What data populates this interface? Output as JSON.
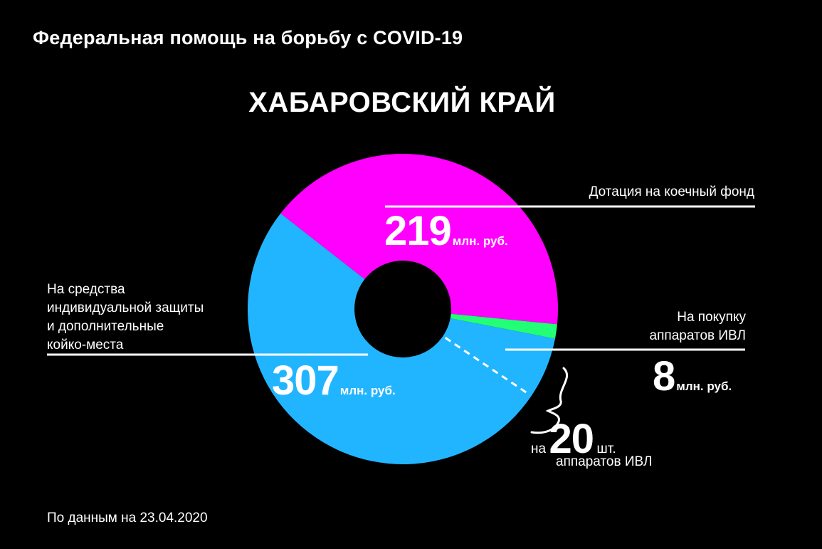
{
  "header": {
    "supertitle": "Федеральная помощь на борьбу с COVID-19",
    "title": "ХАБАРОВСКИЙ КРАЙ"
  },
  "chart_data": {
    "type": "pie",
    "donut": true,
    "slices": [
      {
        "label_lines": [
          "Дотация на коечный фонд"
        ],
        "value": 219,
        "value_text": "219",
        "unit": "млн. руб.",
        "color": "#ff00ff"
      },
      {
        "label_lines": [
          "На покупку",
          "аппаратов ИВЛ"
        ],
        "value": 8,
        "value_text": "8",
        "unit": "млн. руб.",
        "color": "#22ff77"
      },
      {
        "label_lines": [
          "На средства",
          "индивидуальной защиты",
          "и дополнительные",
          "койко-места"
        ],
        "value": 307,
        "value_text": "307",
        "unit": "млн. руб.",
        "color": "#22b5ff"
      }
    ],
    "annotation": {
      "prefix": "на",
      "value": 20,
      "value_text": "20",
      "unit": "шт.",
      "line2": "аппаратов ИВЛ"
    }
  },
  "footer": {
    "source": "По данным на 23.04.2020"
  }
}
